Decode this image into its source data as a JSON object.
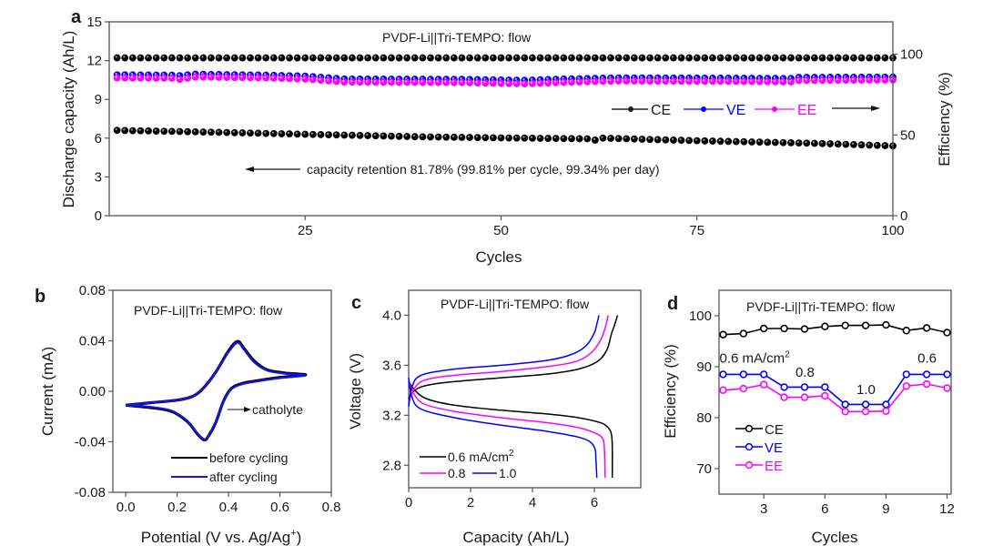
{
  "chart_data": [
    {
      "panel": "a",
      "type": "scatter",
      "title": "PVDF-Li||Tri-TEMPO: flow",
      "xlabel": "Cycles",
      "ylabel": "Discharge capacity (Ah/L)",
      "y2label": "Efficiency (%)",
      "xlim": [
        0,
        100
      ],
      "ylim": [
        0,
        15
      ],
      "y2lim": [
        0,
        120
      ],
      "xticks": [
        25,
        50,
        75,
        100
      ],
      "yticks": [
        0,
        3,
        6,
        9,
        12,
        15
      ],
      "y2ticks": [
        0,
        50,
        100
      ],
      "annotation": "capacity retention 81.78% (99.81% per cycle, 99.34% per day)",
      "legend": [
        "CE",
        "VE",
        "EE"
      ],
      "legend_position": "center-right",
      "series": [
        {
          "name": "Discharge capacity",
          "axis": "left",
          "color": "#000000",
          "anchors": [
            [
              1,
              6.6
            ],
            [
              10,
              6.5
            ],
            [
              25,
              6.3
            ],
            [
              40,
              6.1
            ],
            [
              50,
              6.02
            ],
            [
              61,
              5.95
            ],
            [
              62,
              5.85
            ],
            [
              63,
              6.0
            ],
            [
              75,
              5.8
            ],
            [
              90,
              5.6
            ],
            [
              100,
              5.4
            ]
          ]
        },
        {
          "name": "CE",
          "axis": "right",
          "color": "#000000",
          "anchors": [
            [
              1,
              97.7
            ],
            [
              100,
              97.7
            ]
          ]
        },
        {
          "name": "VE",
          "axis": "right",
          "color": "#0000ff",
          "anchors": [
            [
              1,
              87.2
            ],
            [
              8,
              87.0
            ],
            [
              9,
              86.7
            ],
            [
              11,
              87.6
            ],
            [
              20,
              87.0
            ],
            [
              25,
              86.4
            ],
            [
              30,
              84.6
            ],
            [
              45,
              84.4
            ],
            [
              53,
              83.8
            ],
            [
              58,
              84.6
            ],
            [
              65,
              85.3
            ],
            [
              80,
              85.1
            ],
            [
              87,
              84.9
            ],
            [
              88,
              85.6
            ],
            [
              100,
              85.8
            ]
          ]
        },
        {
          "name": "EE",
          "axis": "right",
          "color": "#ff00ff",
          "anchors": [
            [
              1,
              85.3
            ],
            [
              8,
              85.1
            ],
            [
              9,
              84.4
            ],
            [
              11,
              85.8
            ],
            [
              20,
              85.3
            ],
            [
              25,
              84.6
            ],
            [
              30,
              82.7
            ],
            [
              45,
              82.4
            ],
            [
              53,
              81.6
            ],
            [
              58,
              82.5
            ],
            [
              65,
              83.4
            ],
            [
              80,
              83.1
            ],
            [
              87,
              82.8
            ],
            [
              88,
              83.7
            ],
            [
              100,
              84.0
            ]
          ]
        }
      ]
    },
    {
      "panel": "b",
      "type": "line",
      "title": "PVDF-Li||Tri-TEMPO: flow",
      "xlabel": "Potential (V vs. Ag/Ag",
      "xlabel_sup": "+",
      "xlabel_end": ")",
      "ylabel": "Current (mA)",
      "xlim": [
        -0.05,
        0.8
      ],
      "ylim": [
        -0.08,
        0.08
      ],
      "xticks": [
        "0.0",
        "0.2",
        "0.4",
        "0.6",
        "0.8"
      ],
      "yticks": [
        "-0.08",
        "-0.04",
        "0.00",
        "0.04",
        "0.08"
      ],
      "annotation": "catholyte",
      "legend": [
        "before cycling",
        "after cycling"
      ],
      "legend_position": "bottom-right",
      "series": [
        {
          "name": "before cycling",
          "color": "#000000",
          "forward": [
            [
              0.0,
              -0.011
            ],
            [
              0.1,
              -0.009
            ],
            [
              0.2,
              -0.007
            ],
            [
              0.26,
              -0.004
            ],
            [
              0.3,
              0.002
            ],
            [
              0.35,
              0.015
            ],
            [
              0.4,
              0.032
            ],
            [
              0.435,
              0.0395
            ],
            [
              0.46,
              0.034
            ],
            [
              0.5,
              0.024
            ],
            [
              0.55,
              0.017
            ],
            [
              0.62,
              0.0145
            ],
            [
              0.7,
              0.013
            ]
          ],
          "reverse": [
            [
              0.7,
              0.013
            ],
            [
              0.6,
              0.011
            ],
            [
              0.5,
              0.008
            ],
            [
              0.45,
              0.006
            ],
            [
              0.41,
              0.002
            ],
            [
              0.38,
              -0.008
            ],
            [
              0.35,
              -0.025
            ],
            [
              0.32,
              -0.036
            ],
            [
              0.305,
              -0.0385
            ],
            [
              0.28,
              -0.034
            ],
            [
              0.24,
              -0.024
            ],
            [
              0.18,
              -0.016
            ],
            [
              0.1,
              -0.013
            ],
            [
              0.0,
              -0.011
            ]
          ]
        },
        {
          "name": "after cycling",
          "color": "#1414e6",
          "forward": [
            [
              0.0,
              -0.011
            ],
            [
              0.1,
              -0.009
            ],
            [
              0.2,
              -0.007
            ],
            [
              0.26,
              -0.004
            ],
            [
              0.3,
              0.002
            ],
            [
              0.35,
              0.015
            ],
            [
              0.4,
              0.031
            ],
            [
              0.435,
              0.0385
            ],
            [
              0.46,
              0.033
            ],
            [
              0.5,
              0.023
            ],
            [
              0.55,
              0.0165
            ],
            [
              0.62,
              0.014
            ],
            [
              0.7,
              0.0125
            ]
          ],
          "reverse": [
            [
              0.7,
              0.0125
            ],
            [
              0.6,
              0.0105
            ],
            [
              0.5,
              0.0075
            ],
            [
              0.45,
              0.0055
            ],
            [
              0.41,
              0.0015
            ],
            [
              0.38,
              -0.008
            ],
            [
              0.35,
              -0.025
            ],
            [
              0.32,
              -0.0355
            ],
            [
              0.305,
              -0.038
            ],
            [
              0.28,
              -0.0335
            ],
            [
              0.24,
              -0.0235
            ],
            [
              0.18,
              -0.0155
            ],
            [
              0.1,
              -0.0125
            ],
            [
              0.0,
              -0.011
            ]
          ]
        }
      ]
    },
    {
      "panel": "c",
      "type": "line",
      "title": "PVDF-Li||Tri-TEMPO: flow",
      "xlabel": "Capacity (Ah/L)",
      "ylabel": "Voltage (V)",
      "xlim": [
        0,
        7.5
      ],
      "ylim": [
        2.62,
        4.2
      ],
      "xticks": [
        "0",
        "2",
        "4",
        "6"
      ],
      "yticks": [
        "2.8",
        "3.2",
        "3.6",
        "4.0"
      ],
      "legend": [
        "0.6 mA/cm",
        "0.8",
        "1.0"
      ],
      "legend_sup": "2",
      "legend_position": "bottom-left",
      "series": [
        {
          "name": "0.6 mA/cm2",
          "color": "#000000",
          "charge": [
            [
              0,
              3.33
            ],
            [
              0.2,
              3.4
            ],
            [
              0.6,
              3.44
            ],
            [
              1.5,
              3.47
            ],
            [
              3,
              3.5
            ],
            [
              4.5,
              3.53
            ],
            [
              5.5,
              3.57
            ],
            [
              6.1,
              3.63
            ],
            [
              6.4,
              3.72
            ],
            [
              6.55,
              3.85
            ],
            [
              6.65,
              3.92
            ],
            [
              6.75,
              4.0
            ]
          ],
          "discharge": [
            [
              0,
              3.47
            ],
            [
              0.2,
              3.4
            ],
            [
              0.6,
              3.33
            ],
            [
              1.5,
              3.28
            ],
            [
              3,
              3.24
            ],
            [
              4.5,
              3.21
            ],
            [
              5.5,
              3.18
            ],
            [
              6.2,
              3.14
            ],
            [
              6.45,
              3.1
            ],
            [
              6.55,
              3.05
            ],
            [
              6.58,
              2.95
            ],
            [
              6.58,
              2.7
            ]
          ]
        },
        {
          "name": "0.8",
          "color": "#ff00ff",
          "charge": [
            [
              0,
              3.3
            ],
            [
              0.15,
              3.4
            ],
            [
              0.5,
              3.48
            ],
            [
              1.5,
              3.52
            ],
            [
              3,
              3.55
            ],
            [
              4.5,
              3.59
            ],
            [
              5.4,
              3.63
            ],
            [
              5.9,
              3.7
            ],
            [
              6.2,
              3.8
            ],
            [
              6.35,
              3.9
            ],
            [
              6.45,
              4.0
            ]
          ],
          "discharge": [
            [
              0,
              3.48
            ],
            [
              0.15,
              3.38
            ],
            [
              0.5,
              3.29
            ],
            [
              1.5,
              3.23
            ],
            [
              3,
              3.18
            ],
            [
              4.5,
              3.14
            ],
            [
              5.5,
              3.1
            ],
            [
              6.0,
              3.06
            ],
            [
              6.25,
              3.02
            ],
            [
              6.32,
              2.95
            ],
            [
              6.35,
              2.7
            ]
          ]
        },
        {
          "name": "1.0",
          "color": "#0000ff",
          "charge": [
            [
              0,
              3.27
            ],
            [
              0.1,
              3.42
            ],
            [
              0.4,
              3.52
            ],
            [
              1.5,
              3.57
            ],
            [
              3,
              3.6
            ],
            [
              4.5,
              3.64
            ],
            [
              5.3,
              3.69
            ],
            [
              5.75,
              3.76
            ],
            [
              6.0,
              3.86
            ],
            [
              6.1,
              3.95
            ],
            [
              6.15,
              4.0
            ]
          ],
          "discharge": [
            [
              0,
              3.5
            ],
            [
              0.1,
              3.35
            ],
            [
              0.4,
              3.25
            ],
            [
              1.5,
              3.18
            ],
            [
              3,
              3.12
            ],
            [
              4.5,
              3.07
            ],
            [
              5.4,
              3.03
            ],
            [
              5.85,
              2.99
            ],
            [
              6.02,
              2.93
            ],
            [
              6.05,
              2.85
            ],
            [
              6.08,
              2.7
            ]
          ]
        }
      ]
    },
    {
      "panel": "d",
      "type": "line",
      "title": "PVDF-Li||Tri-TEMPO: flow",
      "xlabel": "Cycles",
      "ylabel": "Efficiency (%)",
      "xlim": [
        0.8,
        12.2
      ],
      "ylim": [
        65,
        105
      ],
      "xticks": [
        3,
        6,
        9,
        12
      ],
      "yticks": [
        70,
        80,
        90,
        100
      ],
      "x": [
        1,
        2,
        3,
        4,
        5,
        6,
        7,
        8,
        9,
        10,
        11,
        12
      ],
      "legend": [
        "CE",
        "VE",
        "EE"
      ],
      "legend_position": "bottom-left",
      "annotations": [
        {
          "text": "0.6 mA/cm",
          "sup": "2",
          "at": [
            1,
            90.8
          ]
        },
        {
          "text": "0.8",
          "at": [
            5,
            88.0
          ]
        },
        {
          "text": "1.0",
          "at": [
            8,
            84.6
          ]
        },
        {
          "text": "0.6",
          "at": [
            11,
            90.8
          ]
        }
      ],
      "series": [
        {
          "name": "CE",
          "color": "#000000",
          "values": [
            96.3,
            96.5,
            97.5,
            97.5,
            97.4,
            97.9,
            98.1,
            98.1,
            98.2,
            97.1,
            97.6,
            96.7
          ]
        },
        {
          "name": "VE",
          "color": "#0000ff",
          "values": [
            88.5,
            88.5,
            88.5,
            86.0,
            86.0,
            86.0,
            82.6,
            82.6,
            82.6,
            88.5,
            88.5,
            88.5
          ]
        },
        {
          "name": "EE",
          "color": "#ff00ff",
          "values": [
            85.4,
            85.7,
            86.5,
            84.0,
            84.0,
            84.3,
            81.2,
            81.2,
            81.3,
            86.2,
            86.6,
            85.8
          ]
        }
      ]
    }
  ]
}
